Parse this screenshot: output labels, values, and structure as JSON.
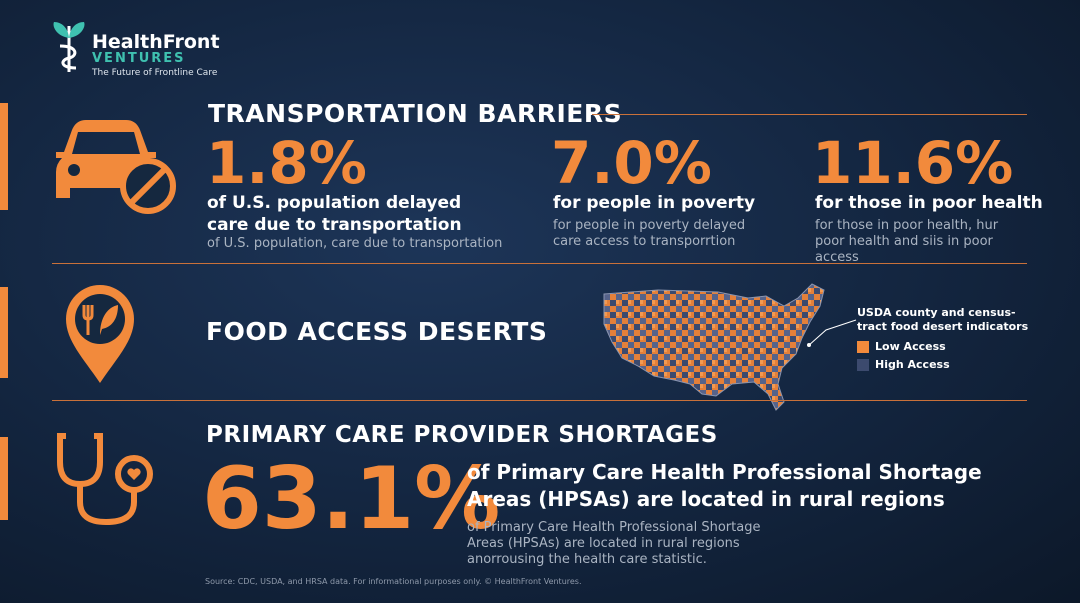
{
  "header": {
    "brand": "HealthFront",
    "brand_sub": "VENTURES",
    "tagline": "The Future of Frontline Care"
  },
  "sections": [
    {
      "title": "TRANSPORTATION BARRIERS",
      "stats": [
        {
          "value": "1.8%",
          "headline": "of U.S. population delayed care due to transportation",
          "detail": "of U.S. population, care due to transportation"
        },
        {
          "value": "7.0%",
          "headline": "for people in poverty",
          "detail": "for people in poverty delayed care access to transporrtion"
        },
        {
          "value": "11.6%",
          "headline": "for those in poor health",
          "detail": "for those in poor health, hur poor health and siis in poor access"
        }
      ]
    },
    {
      "title": "FOOD ACCESS DESERTS",
      "map": {
        "legend_title": "USDA county and census-tract food desert indicators",
        "legend": [
          "Low Access",
          "High Access"
        ]
      }
    },
    {
      "title": "PRIMARY CARE PROVIDER SHORTAGES",
      "stats": [
        {
          "value": "63.1%",
          "headline": "of Primary Care Health Professional Shortage Areas (HPSAs) are located in rural regions",
          "detail": "of Primary Care Health Professional Shortage Areas (HPSAs) are located in rural regions anorrousing the health care statistic."
        }
      ]
    }
  ],
  "footer": "Source: CDC, USDA, and HRSA data. For informational purposes only. © HealthFront Ventures."
}
